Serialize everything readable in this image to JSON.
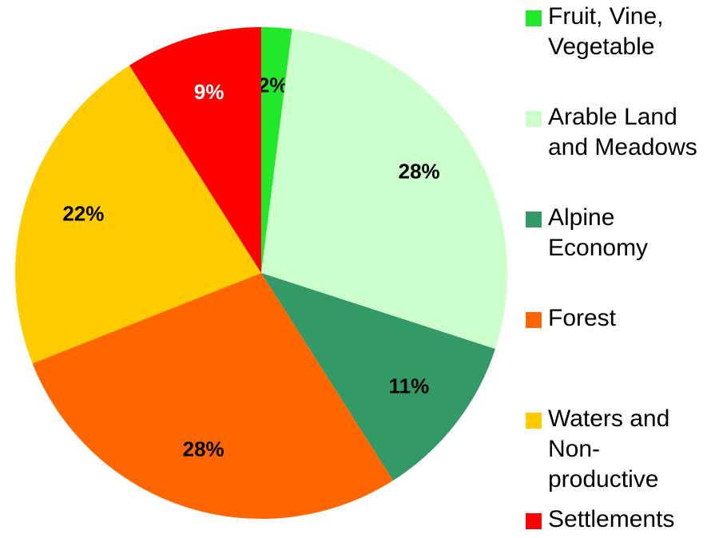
{
  "chart_data": {
    "type": "pie",
    "categories": [
      "Fruit, Vine, Vegetable",
      "Arable Land and Meadows",
      "Alpine Economy",
      "Forest",
      "Waters and Non-productive",
      "Settlements"
    ],
    "values": [
      2,
      28,
      11,
      28,
      22,
      9
    ],
    "value_labels": [
      "2%",
      "28%",
      "11%",
      "28%",
      "22%",
      "9%"
    ],
    "colors": [
      "#22e82a",
      "#ccffcc",
      "#339966",
      "#ff6600",
      "#ffcc00",
      "#ff0000"
    ],
    "legend": "right"
  }
}
